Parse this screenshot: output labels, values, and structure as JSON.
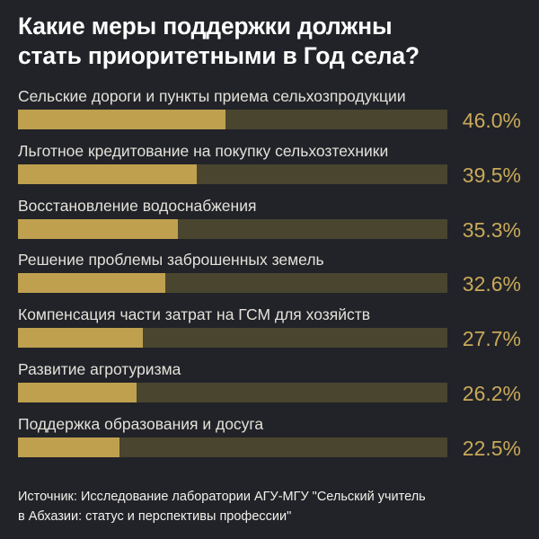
{
  "title_lines": [
    "Какие меры поддержки должны",
    "стать приоритетными в Год села?"
  ],
  "chart_data": {
    "type": "bar",
    "title": "Какие меры поддержки должны стать приоритетными в Год села?",
    "categories": [
      "Сельские дороги и пункты приема сельхозпродукции",
      "Льготное кредитование на покупку сельхозтехники",
      "Восстановление водоснабжения",
      "Решение проблемы заброшенных земель",
      "Компенсация части затрат на ГСМ для хозяйств",
      "Развитие агротуризма",
      "Поддержка образования и досуга"
    ],
    "values": [
      46.0,
      39.5,
      35.3,
      32.6,
      27.7,
      26.2,
      22.5
    ],
    "value_labels": [
      "46.0%",
      "39.5%",
      "35.3%",
      "32.6%",
      "27.7%",
      "26.2%",
      "22.5%"
    ],
    "xlim": [
      0,
      95
    ],
    "unit": "%",
    "orientation": "horizontal"
  },
  "source_lines": [
    "Источник: Исследование лаборатории АГУ-МГУ \"Сельский учитель",
    "в Абхазии: статус и перспективы профессии\""
  ],
  "colors": {
    "background": "#212328",
    "bar_fill": "#bfa04f",
    "bar_track": "#49452f",
    "value_text": "#c9a95a"
  }
}
